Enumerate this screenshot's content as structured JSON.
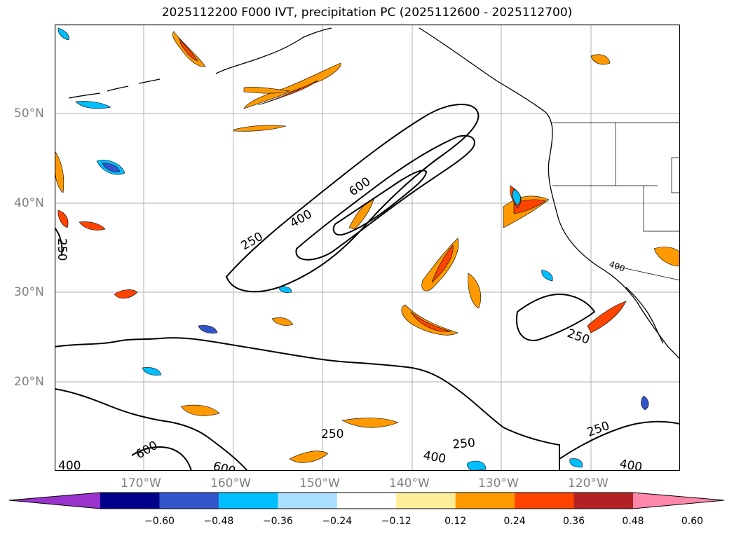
{
  "title": "2025112200 F000 IVT, precipitation PC (2025112600 - 2025112700)",
  "map": {
    "latitude_labels": [
      "50°N",
      "40°N",
      "30°N",
      "20°N"
    ],
    "longitude_labels": [
      "170°W",
      "160°W",
      "150°W",
      "140°W",
      "130°W",
      "120°W"
    ],
    "contour_labels": [
      "250",
      "400",
      "600",
      "250",
      "400",
      "600",
      "250",
      "400",
      "250",
      "400",
      "600",
      "250",
      "250",
      "400"
    ],
    "layers": {
      "ocean": "#ffffff",
      "coastline": "#000000",
      "grid": "#b0b0b0"
    }
  },
  "colorbar": {
    "colors": [
      "#9933cc",
      "#00008b",
      "#3355cc",
      "#00bfff",
      "#aadfff",
      "#ffffff",
      "#ffee99",
      "#ff9900",
      "#ff4400",
      "#b22222",
      "#ff88aa"
    ],
    "labels": [
      "−0.60",
      "−0.48",
      "−0.36",
      "−0.24",
      "−0.12",
      "0.12",
      "0.24",
      "0.36",
      "0.48",
      "0.60"
    ]
  }
}
